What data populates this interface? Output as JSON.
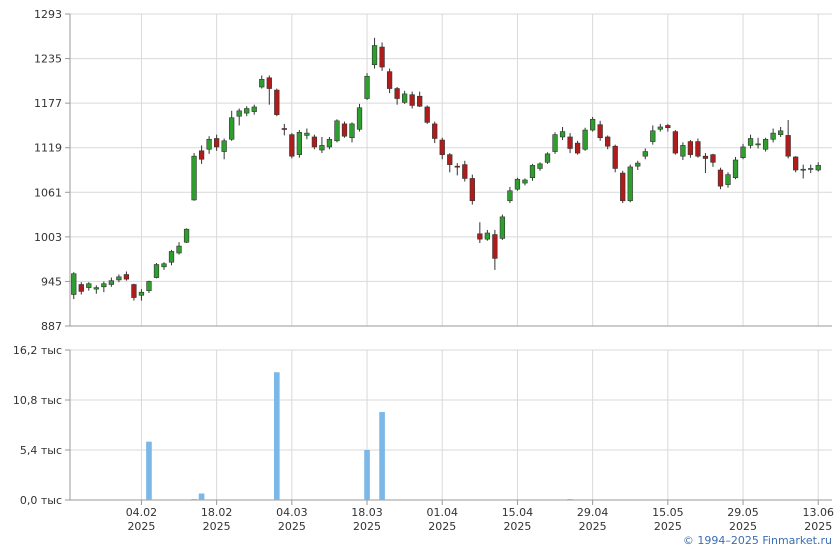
{
  "footer": {
    "copyright": "© 1994–2025 Finmarket.ru"
  },
  "chart_data": [
    {
      "type": "candlestick",
      "title": "",
      "ylim": [
        887,
        1293
      ],
      "y_ticks": [
        "1293",
        "1235",
        "1177",
        "1119",
        "1061",
        "1003",
        "945",
        "887"
      ],
      "grid": true,
      "colors": {
        "up": "#2e9e2e",
        "down": "#b01b1b",
        "wick": "#333333"
      },
      "candles": [
        {
          "o": 928,
          "h": 957,
          "l": 922,
          "c": 955
        },
        {
          "o": 941,
          "h": 944,
          "l": 928,
          "c": 932
        },
        {
          "o": 937,
          "h": 944,
          "l": 933,
          "c": 942
        },
        {
          "o": 935,
          "h": 940,
          "l": 929,
          "c": 937
        },
        {
          "o": 938,
          "h": 945,
          "l": 931,
          "c": 942
        },
        {
          "o": 941,
          "h": 950,
          "l": 938,
          "c": 946
        },
        {
          "o": 947,
          "h": 954,
          "l": 944,
          "c": 951
        },
        {
          "o": 954,
          "h": 958,
          "l": 946,
          "c": 948
        },
        {
          "o": 941,
          "h": 942,
          "l": 920,
          "c": 924
        },
        {
          "o": 927,
          "h": 935,
          "l": 920,
          "c": 931
        },
        {
          "o": 933,
          "h": 946,
          "l": 930,
          "c": 945
        },
        {
          "o": 950,
          "h": 969,
          "l": 949,
          "c": 967
        },
        {
          "o": 964,
          "h": 970,
          "l": 960,
          "c": 968
        },
        {
          "o": 970,
          "h": 986,
          "l": 966,
          "c": 984
        },
        {
          "o": 982,
          "h": 996,
          "l": 980,
          "c": 991
        },
        {
          "o": 996,
          "h": 1014,
          "l": 995,
          "c": 1013
        },
        {
          "o": 1051,
          "h": 1112,
          "l": 1050,
          "c": 1108
        },
        {
          "o": 1115,
          "h": 1122,
          "l": 1098,
          "c": 1104
        },
        {
          "o": 1117,
          "h": 1134,
          "l": 1111,
          "c": 1130
        },
        {
          "o": 1131,
          "h": 1136,
          "l": 1115,
          "c": 1120
        },
        {
          "o": 1114,
          "h": 1131,
          "l": 1104,
          "c": 1128
        },
        {
          "o": 1130,
          "h": 1167,
          "l": 1128,
          "c": 1158
        },
        {
          "o": 1160,
          "h": 1170,
          "l": 1148,
          "c": 1167
        },
        {
          "o": 1164,
          "h": 1173,
          "l": 1160,
          "c": 1170
        },
        {
          "o": 1166,
          "h": 1175,
          "l": 1162,
          "c": 1172
        },
        {
          "o": 1198,
          "h": 1213,
          "l": 1196,
          "c": 1208
        },
        {
          "o": 1210,
          "h": 1213,
          "l": 1175,
          "c": 1196
        },
        {
          "o": 1194,
          "h": 1196,
          "l": 1160,
          "c": 1162
        },
        {
          "o": 1144,
          "h": 1150,
          "l": 1135,
          "c": 1143
        },
        {
          "o": 1136,
          "h": 1138,
          "l": 1105,
          "c": 1108
        },
        {
          "o": 1110,
          "h": 1142,
          "l": 1106,
          "c": 1139
        },
        {
          "o": 1135,
          "h": 1144,
          "l": 1130,
          "c": 1138
        },
        {
          "o": 1133,
          "h": 1136,
          "l": 1117,
          "c": 1120
        },
        {
          "o": 1116,
          "h": 1133,
          "l": 1112,
          "c": 1122
        },
        {
          "o": 1120,
          "h": 1133,
          "l": 1117,
          "c": 1130
        },
        {
          "o": 1128,
          "h": 1156,
          "l": 1126,
          "c": 1154
        },
        {
          "o": 1150,
          "h": 1153,
          "l": 1132,
          "c": 1134
        },
        {
          "o": 1132,
          "h": 1152,
          "l": 1126,
          "c": 1150
        },
        {
          "o": 1143,
          "h": 1176,
          "l": 1140,
          "c": 1171
        },
        {
          "o": 1183,
          "h": 1216,
          "l": 1181,
          "c": 1212
        },
        {
          "o": 1227,
          "h": 1262,
          "l": 1222,
          "c": 1252
        },
        {
          "o": 1250,
          "h": 1256,
          "l": 1219,
          "c": 1224
        },
        {
          "o": 1218,
          "h": 1222,
          "l": 1190,
          "c": 1196
        },
        {
          "o": 1196,
          "h": 1198,
          "l": 1175,
          "c": 1183
        },
        {
          "o": 1178,
          "h": 1193,
          "l": 1176,
          "c": 1189
        },
        {
          "o": 1188,
          "h": 1192,
          "l": 1170,
          "c": 1174
        },
        {
          "o": 1186,
          "h": 1192,
          "l": 1172,
          "c": 1173
        },
        {
          "o": 1172,
          "h": 1174,
          "l": 1150,
          "c": 1152
        },
        {
          "o": 1150,
          "h": 1153,
          "l": 1125,
          "c": 1131
        },
        {
          "o": 1129,
          "h": 1132,
          "l": 1104,
          "c": 1110
        },
        {
          "o": 1110,
          "h": 1112,
          "l": 1087,
          "c": 1097
        },
        {
          "o": 1095,
          "h": 1099,
          "l": 1083,
          "c": 1094
        },
        {
          "o": 1097,
          "h": 1102,
          "l": 1075,
          "c": 1079
        },
        {
          "o": 1079,
          "h": 1084,
          "l": 1045,
          "c": 1050
        },
        {
          "o": 1007,
          "h": 1022,
          "l": 995,
          "c": 1000
        },
        {
          "o": 1000,
          "h": 1012,
          "l": 998,
          "c": 1008
        },
        {
          "o": 1006,
          "h": 1012,
          "l": 960,
          "c": 975
        },
        {
          "o": 1001,
          "h": 1032,
          "l": 999,
          "c": 1029
        },
        {
          "o": 1050,
          "h": 1068,
          "l": 1047,
          "c": 1063
        },
        {
          "o": 1065,
          "h": 1080,
          "l": 1063,
          "c": 1078
        },
        {
          "o": 1073,
          "h": 1079,
          "l": 1070,
          "c": 1077
        },
        {
          "o": 1080,
          "h": 1098,
          "l": 1076,
          "c": 1096
        },
        {
          "o": 1092,
          "h": 1100,
          "l": 1089,
          "c": 1098
        },
        {
          "o": 1100,
          "h": 1113,
          "l": 1098,
          "c": 1111
        },
        {
          "o": 1114,
          "h": 1139,
          "l": 1111,
          "c": 1136
        },
        {
          "o": 1133,
          "h": 1146,
          "l": 1129,
          "c": 1140
        },
        {
          "o": 1133,
          "h": 1138,
          "l": 1112,
          "c": 1118
        },
        {
          "o": 1125,
          "h": 1128,
          "l": 1110,
          "c": 1112
        },
        {
          "o": 1117,
          "h": 1145,
          "l": 1115,
          "c": 1142
        },
        {
          "o": 1142,
          "h": 1159,
          "l": 1140,
          "c": 1156
        },
        {
          "o": 1149,
          "h": 1154,
          "l": 1128,
          "c": 1132
        },
        {
          "o": 1133,
          "h": 1135,
          "l": 1117,
          "c": 1121
        },
        {
          "o": 1121,
          "h": 1123,
          "l": 1087,
          "c": 1092
        },
        {
          "o": 1086,
          "h": 1089,
          "l": 1047,
          "c": 1050
        },
        {
          "o": 1050,
          "h": 1097,
          "l": 1048,
          "c": 1094
        },
        {
          "o": 1095,
          "h": 1102,
          "l": 1090,
          "c": 1099
        },
        {
          "o": 1108,
          "h": 1118,
          "l": 1104,
          "c": 1114
        },
        {
          "o": 1127,
          "h": 1148,
          "l": 1123,
          "c": 1141
        },
        {
          "o": 1143,
          "h": 1150,
          "l": 1140,
          "c": 1146
        },
        {
          "o": 1148,
          "h": 1150,
          "l": 1140,
          "c": 1145
        },
        {
          "o": 1140,
          "h": 1142,
          "l": 1110,
          "c": 1112
        },
        {
          "o": 1108,
          "h": 1126,
          "l": 1103,
          "c": 1122
        },
        {
          "o": 1127,
          "h": 1129,
          "l": 1106,
          "c": 1110
        },
        {
          "o": 1127,
          "h": 1131,
          "l": 1106,
          "c": 1108
        },
        {
          "o": 1108,
          "h": 1112,
          "l": 1086,
          "c": 1105
        },
        {
          "o": 1110,
          "h": 1111,
          "l": 1094,
          "c": 1100
        },
        {
          "o": 1090,
          "h": 1093,
          "l": 1065,
          "c": 1069
        },
        {
          "o": 1071,
          "h": 1087,
          "l": 1067,
          "c": 1084
        },
        {
          "o": 1080,
          "h": 1107,
          "l": 1078,
          "c": 1103
        },
        {
          "o": 1106,
          "h": 1124,
          "l": 1104,
          "c": 1120
        },
        {
          "o": 1122,
          "h": 1136,
          "l": 1118,
          "c": 1131
        },
        {
          "o": 1124,
          "h": 1132,
          "l": 1118,
          "c": 1124
        },
        {
          "o": 1117,
          "h": 1132,
          "l": 1114,
          "c": 1130
        },
        {
          "o": 1130,
          "h": 1144,
          "l": 1126,
          "c": 1138
        },
        {
          "o": 1136,
          "h": 1146,
          "l": 1133,
          "c": 1141
        },
        {
          "o": 1135,
          "h": 1155,
          "l": 1105,
          "c": 1108
        },
        {
          "o": 1107,
          "h": 1108,
          "l": 1087,
          "c": 1090
        },
        {
          "o": 1090,
          "h": 1097,
          "l": 1079,
          "c": 1091
        },
        {
          "o": 1092,
          "h": 1097,
          "l": 1086,
          "c": 1092
        },
        {
          "o": 1090,
          "h": 1100,
          "l": 1088,
          "c": 1096
        }
      ]
    },
    {
      "type": "bar",
      "title": "",
      "ylim": [
        0,
        16.2
      ],
      "y_ticks": [
        "16,2 тыс",
        "10,8 тыс",
        "5,4 тыс",
        "0,0 тыс"
      ],
      "grid": true,
      "bar_color": "#7bb8e8",
      "values": [
        0,
        0,
        0,
        0,
        0,
        0,
        0,
        0,
        0,
        0,
        6.3,
        0,
        0,
        0,
        0,
        0,
        0.1,
        0.7,
        0,
        0,
        0,
        0,
        0,
        0,
        0,
        0,
        0,
        13.8,
        0,
        0,
        0,
        0,
        0,
        0,
        0,
        0,
        0,
        0,
        0,
        5.4,
        0,
        9.5,
        0,
        0,
        0,
        0,
        0,
        0,
        0,
        0,
        0,
        0,
        0,
        0,
        0,
        0,
        0,
        0,
        0,
        0,
        0,
        0,
        0,
        0,
        0,
        0,
        0.1,
        0,
        0,
        0,
        0,
        0,
        0,
        0,
        0,
        0,
        0,
        0,
        0,
        0,
        0,
        0,
        0,
        0,
        0,
        0,
        0,
        0,
        0,
        0,
        0,
        0,
        0,
        0,
        0,
        0,
        0,
        0,
        0,
        0
      ]
    }
  ],
  "x_axis": {
    "ticks": [
      {
        "day": "04.02",
        "year": "2025",
        "index": 9.5
      },
      {
        "day": "18.02",
        "year": "2025",
        "index": 19.5
      },
      {
        "day": "04.03",
        "year": "2025",
        "index": 29.5
      },
      {
        "day": "18.03",
        "year": "2025",
        "index": 39.5
      },
      {
        "day": "01.04",
        "year": "2025",
        "index": 49.5
      },
      {
        "day": "15.04",
        "year": "2025",
        "index": 59.5
      },
      {
        "day": "29.04",
        "year": "2025",
        "index": 69.5
      },
      {
        "day": "15.05",
        "year": "2025",
        "index": 79.5
      },
      {
        "day": "29.05",
        "year": "2025",
        "index": 89.5
      },
      {
        "day": "13.06",
        "year": "2025",
        "index": 99.5
      }
    ]
  }
}
